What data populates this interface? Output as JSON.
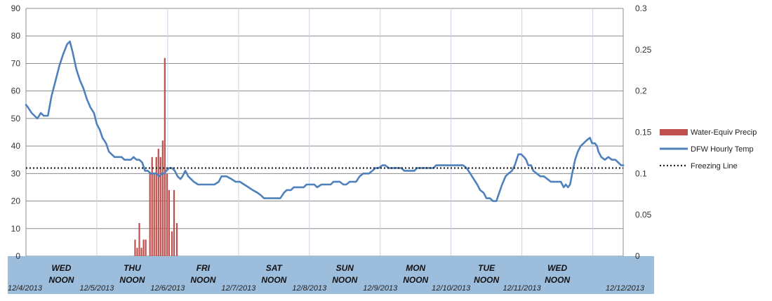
{
  "chart_data": {
    "type": "line+bar",
    "x_axis": {
      "day_labels": [
        "WED",
        "THU",
        "FRI",
        "SAT",
        "SUN",
        "MON",
        "TUE",
        "WED"
      ],
      "noon_label": "NOON",
      "date_labels": [
        "12/4/2013",
        "12/5/2013",
        "12/6/2013",
        "12/7/2013",
        "12/8/2013",
        "12/9/2013",
        "12/10/2013",
        "12/11/2013",
        "12/12/2013"
      ],
      "background_color": "#9dbddc"
    },
    "y_left": {
      "min": 0,
      "max": 90,
      "ticks": [
        "0",
        "10",
        "20",
        "30",
        "40",
        "50",
        "60",
        "70",
        "80",
        "90"
      ]
    },
    "y_right": {
      "min": 0,
      "max": 0.3,
      "ticks": [
        "0",
        "0.05",
        "0.1",
        "0.15",
        "0.2",
        "0.25",
        "0.3"
      ]
    },
    "grid": true,
    "legend_position": "right",
    "series": [
      {
        "name": "Water-Equiv Precip",
        "type": "bar",
        "axis": "right",
        "color": "#c0504d",
        "points": [
          [
            1.54,
            0.02
          ],
          [
            1.57,
            0.01
          ],
          [
            1.6,
            0.04
          ],
          [
            1.63,
            0.01
          ],
          [
            1.66,
            0.02
          ],
          [
            1.69,
            0.02
          ],
          [
            1.75,
            0.1
          ],
          [
            1.78,
            0.12
          ],
          [
            1.81,
            0.1
          ],
          [
            1.84,
            0.12
          ],
          [
            1.87,
            0.13
          ],
          [
            1.9,
            0.12
          ],
          [
            1.93,
            0.14
          ],
          [
            1.96,
            0.24
          ],
          [
            1.99,
            0.1
          ],
          [
            2.02,
            0.08
          ],
          [
            2.06,
            0.03
          ],
          [
            2.09,
            0.08
          ],
          [
            2.13,
            0.04
          ]
        ]
      },
      {
        "name": "DFW Hourly Temp",
        "type": "line",
        "axis": "left",
        "color": "#4f81bd",
        "points": [
          [
            0.0,
            55
          ],
          [
            0.03,
            54
          ],
          [
            0.08,
            52
          ],
          [
            0.16,
            50
          ],
          [
            0.21,
            52
          ],
          [
            0.25,
            51
          ],
          [
            0.31,
            51
          ],
          [
            0.36,
            58
          ],
          [
            0.42,
            64
          ],
          [
            0.47,
            69
          ],
          [
            0.52,
            73
          ],
          [
            0.58,
            77
          ],
          [
            0.62,
            78
          ],
          [
            0.66,
            74
          ],
          [
            0.71,
            68
          ],
          [
            0.76,
            64
          ],
          [
            0.81,
            61
          ],
          [
            0.86,
            57
          ],
          [
            0.91,
            54
          ],
          [
            0.96,
            52
          ],
          [
            1.0,
            48
          ],
          [
            1.04,
            46
          ],
          [
            1.08,
            43
          ],
          [
            1.13,
            41
          ],
          [
            1.17,
            38
          ],
          [
            1.21,
            37
          ],
          [
            1.25,
            36
          ],
          [
            1.3,
            36
          ],
          [
            1.35,
            36
          ],
          [
            1.39,
            35
          ],
          [
            1.44,
            35
          ],
          [
            1.48,
            35
          ],
          [
            1.52,
            36
          ],
          [
            1.56,
            35
          ],
          [
            1.6,
            35
          ],
          [
            1.64,
            34
          ],
          [
            1.68,
            31
          ],
          [
            1.72,
            31
          ],
          [
            1.76,
            30
          ],
          [
            1.8,
            30
          ],
          [
            1.84,
            30
          ],
          [
            1.88,
            29
          ],
          [
            1.92,
            30
          ],
          [
            1.95,
            30
          ],
          [
            1.98,
            31
          ],
          [
            2.02,
            32
          ],
          [
            2.06,
            32
          ],
          [
            2.1,
            31
          ],
          [
            2.14,
            29
          ],
          [
            2.18,
            28
          ],
          [
            2.21,
            29
          ],
          [
            2.23,
            30
          ],
          [
            2.25,
            31
          ],
          [
            2.27,
            30
          ],
          [
            2.29,
            29
          ],
          [
            2.33,
            28
          ],
          [
            2.37,
            27
          ],
          [
            2.43,
            26
          ],
          [
            2.5,
            26
          ],
          [
            2.6,
            26
          ],
          [
            2.66,
            26
          ],
          [
            2.72,
            27
          ],
          [
            2.76,
            29
          ],
          [
            2.83,
            29
          ],
          [
            2.9,
            28
          ],
          [
            2.96,
            27
          ],
          [
            3.02,
            27
          ],
          [
            3.08,
            26
          ],
          [
            3.14,
            25
          ],
          [
            3.2,
            24
          ],
          [
            3.27,
            23
          ],
          [
            3.32,
            22
          ],
          [
            3.36,
            21
          ],
          [
            3.45,
            21
          ],
          [
            3.55,
            21
          ],
          [
            3.59,
            21
          ],
          [
            3.64,
            23
          ],
          [
            3.68,
            24
          ],
          [
            3.74,
            24
          ],
          [
            3.78,
            25
          ],
          [
            3.92,
            25
          ],
          [
            3.96,
            26
          ],
          [
            4.07,
            26
          ],
          [
            4.11,
            25
          ],
          [
            4.17,
            26
          ],
          [
            4.3,
            26
          ],
          [
            4.34,
            27
          ],
          [
            4.43,
            27
          ],
          [
            4.48,
            26
          ],
          [
            4.52,
            26
          ],
          [
            4.57,
            27
          ],
          [
            4.61,
            27
          ],
          [
            4.66,
            27
          ],
          [
            4.71,
            29
          ],
          [
            4.76,
            30
          ],
          [
            4.84,
            30
          ],
          [
            4.89,
            31
          ],
          [
            4.93,
            32
          ],
          [
            4.98,
            32
          ],
          [
            5.03,
            33
          ],
          [
            5.07,
            33
          ],
          [
            5.12,
            32
          ],
          [
            5.3,
            32
          ],
          [
            5.34,
            31
          ],
          [
            5.48,
            31
          ],
          [
            5.52,
            32
          ],
          [
            5.75,
            32
          ],
          [
            5.79,
            33
          ],
          [
            6.17,
            33
          ],
          [
            6.22,
            32
          ],
          [
            6.27,
            30
          ],
          [
            6.32,
            28
          ],
          [
            6.37,
            26
          ],
          [
            6.41,
            24
          ],
          [
            6.46,
            23
          ],
          [
            6.5,
            21
          ],
          [
            6.55,
            21
          ],
          [
            6.59,
            20
          ],
          [
            6.64,
            20
          ],
          [
            6.68,
            23
          ],
          [
            6.72,
            26
          ],
          [
            6.77,
            29
          ],
          [
            6.81,
            30
          ],
          [
            6.86,
            31
          ],
          [
            6.9,
            33
          ],
          [
            6.95,
            37
          ],
          [
            6.99,
            37
          ],
          [
            7.03,
            36
          ],
          [
            7.06,
            35
          ],
          [
            7.09,
            33
          ],
          [
            7.13,
            33
          ],
          [
            7.16,
            31
          ],
          [
            7.21,
            30
          ],
          [
            7.26,
            29
          ],
          [
            7.31,
            29
          ],
          [
            7.36,
            28
          ],
          [
            7.41,
            27
          ],
          [
            7.45,
            27
          ],
          [
            7.52,
            27
          ],
          [
            7.55,
            27
          ],
          [
            7.59,
            25
          ],
          [
            7.62,
            26
          ],
          [
            7.65,
            25
          ],
          [
            7.68,
            26
          ],
          [
            7.71,
            30
          ],
          [
            7.75,
            35
          ],
          [
            7.79,
            38
          ],
          [
            7.83,
            40
          ],
          [
            7.87,
            41
          ],
          [
            7.91,
            42
          ],
          [
            7.96,
            43
          ],
          [
            7.99,
            41
          ],
          [
            8.03,
            41
          ],
          [
            8.06,
            40
          ],
          [
            8.08,
            38
          ],
          [
            8.12,
            36
          ],
          [
            8.17,
            35
          ],
          [
            8.22,
            36
          ],
          [
            8.27,
            35
          ],
          [
            8.32,
            35
          ],
          [
            8.36,
            34
          ],
          [
            8.4,
            33
          ],
          [
            8.43,
            33
          ]
        ]
      },
      {
        "name": "Freezing Line",
        "type": "line",
        "axis": "left",
        "color": "#222222",
        "style": "dotted",
        "value": 32
      }
    ]
  }
}
